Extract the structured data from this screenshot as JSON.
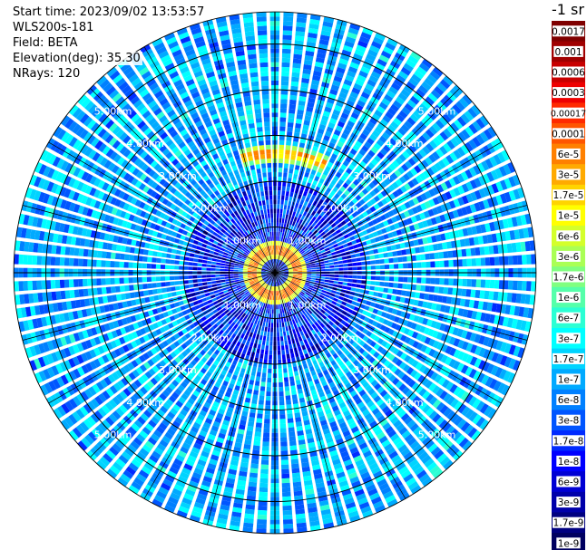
{
  "header": {
    "start_time": "Start time: 2023/09/02 13:53:57",
    "instrument": "WLS200s-181",
    "field": "Field: BETA",
    "elevation": "Elevation(deg): 35.30",
    "nrays": "NRays: 120"
  },
  "colorbar": {
    "unit_label": "-1 sr",
    "labels": [
      "0.0017",
      "0.001",
      "0.0006",
      "0.0003",
      "0.00017",
      "0.0001",
      "6e-5",
      "3e-5",
      "1.7e-5",
      "1e-5",
      "6e-6",
      "3e-6",
      "1.7e-6",
      "1e-6",
      "6e-7",
      "3e-7",
      "1.7e-7",
      "1e-7",
      "6e-8",
      "3e-8",
      "1.7e-8",
      "1e-8",
      "6e-9",
      "3e-9",
      "1.7e-9",
      "1e-9"
    ],
    "colors": [
      "#7f0000",
      "#a00000",
      "#c80000",
      "#ee0000",
      "#ff2a00",
      "#ff5500",
      "#ff8000",
      "#ffaa00",
      "#ffd400",
      "#ffff00",
      "#d4ff2b",
      "#aaff55",
      "#80ff80",
      "#55ffaa",
      "#2bffd4",
      "#00ffff",
      "#00d4ff",
      "#00aaff",
      "#0080ff",
      "#0055ff",
      "#002aff",
      "#0000ff",
      "#0000d4",
      "#0000aa",
      "#000080",
      "#000060"
    ]
  },
  "chart_data": {
    "type": "heatmap",
    "projection": "polar (PPI scan)",
    "field": "BETA",
    "elevation_deg": 35.3,
    "n_rays": 120,
    "range_ring_labels": [
      "1.00km",
      "2.00km",
      "3.00km",
      "4.00km",
      "5.00km"
    ],
    "range_rings_km": [
      1,
      2,
      3,
      4,
      5
    ],
    "max_range_km": 5.7,
    "color_scale": "log10, 1e-9 to 0.0017 sr-1",
    "features": [
      {
        "description": "strong aerosol/cloud ring",
        "range_km": 0.5,
        "value": 0.0003
      },
      {
        "description": "broken arc north",
        "range_km": 2.6,
        "azimuth_deg": [
          345,
          25
        ],
        "value": 0.0002
      },
      {
        "description": "background",
        "value": 1e-07
      }
    ]
  }
}
